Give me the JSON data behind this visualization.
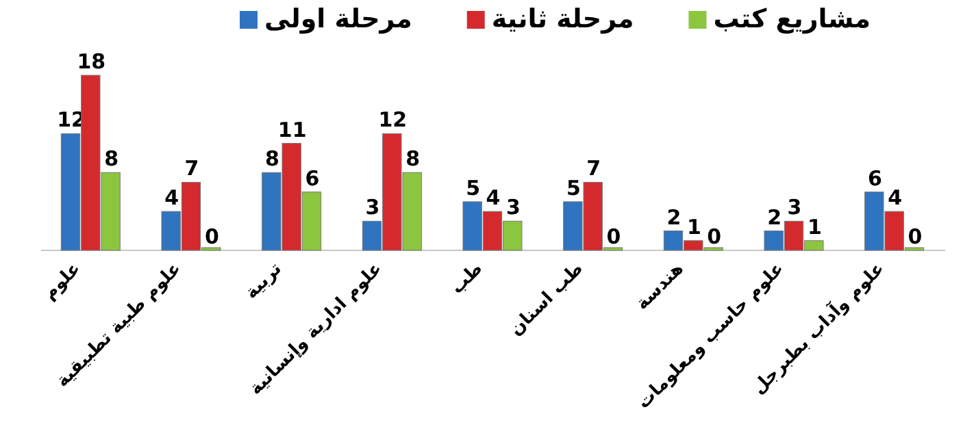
{
  "chart_data": {
    "type": "bar",
    "legend": "top",
    "data_labels": true,
    "grid": false,
    "categories": [
      "علوم",
      "علوم طبية تطبيقية",
      "تربية",
      "علوم ادارية وإنسانية",
      "طب",
      "طب اسنان",
      "هندسة",
      "علوم حاسب ومعلومات",
      "علوم وآداب بطبرجل"
    ],
    "series": [
      {
        "name": "مرحلة اولى",
        "color": "#2f74c0",
        "values": [
          12,
          4,
          8,
          3,
          5,
          5,
          2,
          2,
          6
        ]
      },
      {
        "name": "مرحلة ثانية",
        "color": "#d42a2e",
        "values": [
          18,
          7,
          11,
          12,
          4,
          7,
          1,
          3,
          4
        ]
      },
      {
        "name": "مشاريع كتب",
        "color": "#8cc63f",
        "values": [
          8,
          0,
          6,
          8,
          3,
          0,
          0,
          1,
          0
        ]
      }
    ]
  }
}
